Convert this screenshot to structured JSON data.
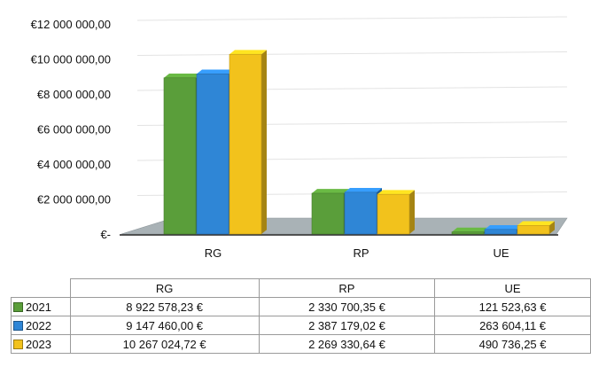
{
  "chart_data": {
    "type": "bar",
    "categories": [
      "RG",
      "RP",
      "UE"
    ],
    "series": [
      {
        "name": "2021",
        "color": "#5a9e3a",
        "values": [
          8922578.23,
          2330700.35,
          121523.63
        ]
      },
      {
        "name": "2022",
        "color": "#2f86d6",
        "values": [
          9147460.0,
          2387179.02,
          263604.11
        ]
      },
      {
        "name": "2023",
        "color": "#f2c21c",
        "values": [
          10267024.72,
          2269330.64,
          490736.25
        ]
      }
    ],
    "ylim": [
      0,
      12000000
    ],
    "y_ticks": [
      {
        "value": 0,
        "label": "€-"
      },
      {
        "value": 2000000,
        "label": "€2 000 000,00"
      },
      {
        "value": 4000000,
        "label": "€4 000 000,00"
      },
      {
        "value": 6000000,
        "label": "€6 000 000,00"
      },
      {
        "value": 8000000,
        "label": "€8 000 000,00"
      },
      {
        "value": 10000000,
        "label": "€10 000 000,00"
      },
      {
        "value": 12000000,
        "label": "€12 000 000,00"
      }
    ],
    "grid": true,
    "style": "3d-clustered-column",
    "legend_placement": "data-table-rows"
  },
  "table": {
    "headers": [
      "RG",
      "RP",
      "UE"
    ],
    "rows": [
      {
        "label": "2021",
        "cells": [
          "8 922 578,23 €",
          "2 330 700,35 €",
          "121 523,63 €"
        ]
      },
      {
        "label": "2022",
        "cells": [
          "9 147 460,00 €",
          "2 387 179,02 €",
          "263 604,11 €"
        ]
      },
      {
        "label": "2023",
        "cells": [
          "10 267 024,72 €",
          "2 269 330,64 €",
          "490 736,25 €"
        ]
      }
    ]
  }
}
